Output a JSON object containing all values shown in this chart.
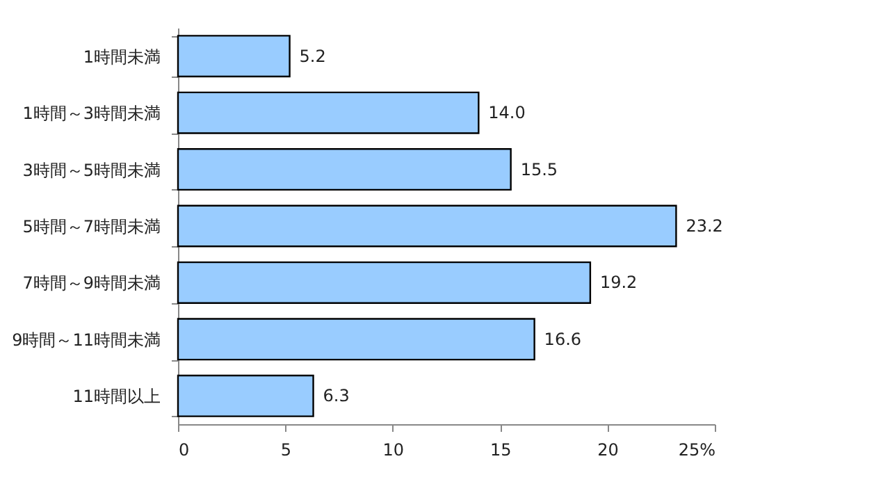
{
  "chart_data": {
    "type": "bar",
    "orientation": "horizontal",
    "categories": [
      "1時間未満",
      "1時間～3時間未満",
      "3時間～5時間未満",
      "5時間～7時間未満",
      "7時間～9時間未満",
      "9時間～11時間未満",
      "11時間以上"
    ],
    "values": [
      5.2,
      14.0,
      15.5,
      23.2,
      19.2,
      16.6,
      6.3
    ],
    "value_labels": [
      "5.2",
      "14.0",
      "15.5",
      "23.2",
      "19.2",
      "16.6",
      "6.3"
    ],
    "color": "#99ccff",
    "xlim": [
      0,
      25
    ],
    "xticks": [
      0,
      5,
      10,
      15,
      20,
      {
        "value": 25,
        "label": "25%"
      }
    ],
    "grid": false
  }
}
